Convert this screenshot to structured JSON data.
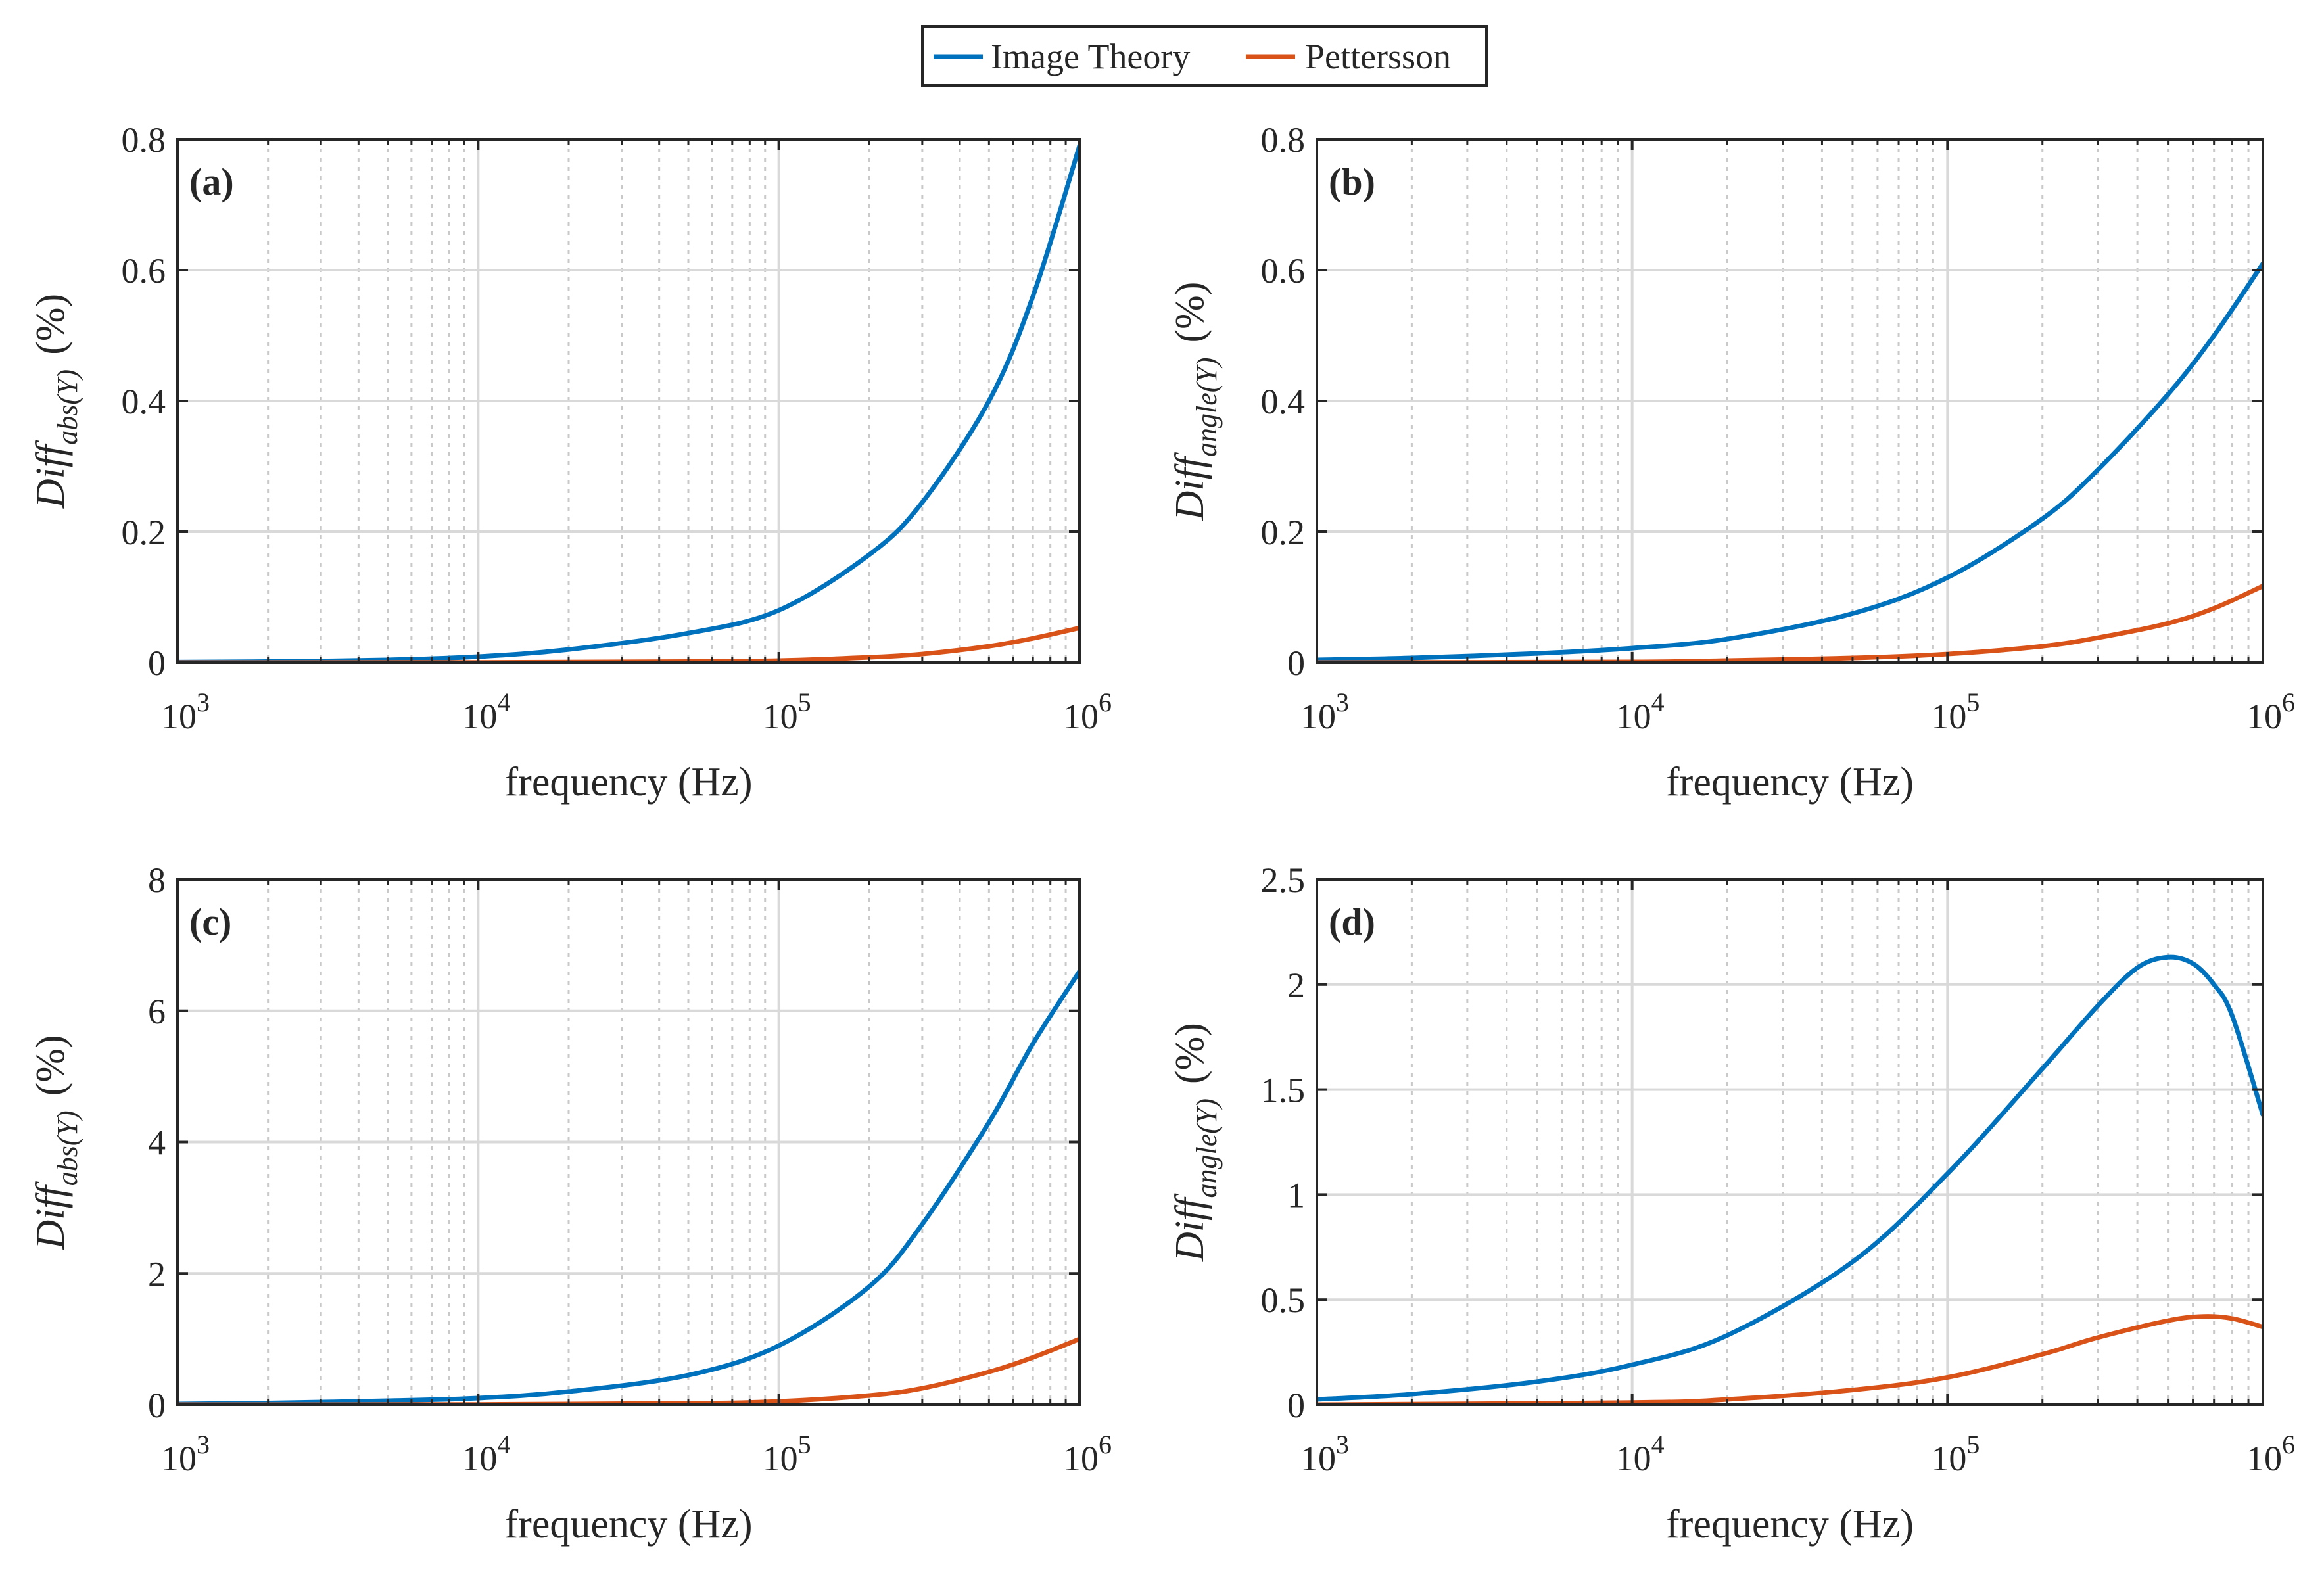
{
  "legend": {
    "items": [
      {
        "label": "Image Theory",
        "color": "#0072BD"
      },
      {
        "label": "Pettersson",
        "color": "#D95319"
      }
    ]
  },
  "chart_data": [
    {
      "type": "line",
      "panel": "(a)",
      "xlabel": "frequency (Hz)",
      "ylabel": {
        "main": "Diff",
        "sub": "abs(Y)",
        "unit": "(%)"
      },
      "xscale": "log",
      "xlim": [
        1000,
        1000000
      ],
      "xticks": [
        {
          "base": "10",
          "exp": "3"
        },
        {
          "base": "10",
          "exp": "4"
        },
        {
          "base": "10",
          "exp": "5"
        },
        {
          "base": "10",
          "exp": "6"
        }
      ],
      "ylim": [
        0,
        0.8
      ],
      "yticks": [
        "0",
        "0.2",
        "0.4",
        "0.6",
        "0.8"
      ],
      "grid": true,
      "series": [
        {
          "name": "Image Theory",
          "color": "#0072BD",
          "x": [
            1000,
            2000,
            5000,
            10000,
            20000,
            50000,
            100000,
            200000,
            300000,
            500000,
            700000,
            1000000
          ],
          "y": [
            0.0006,
            0.0015,
            0.004,
            0.009,
            0.02,
            0.045,
            0.08,
            0.165,
            0.245,
            0.4,
            0.56,
            0.79
          ]
        },
        {
          "name": "Pettersson",
          "color": "#D95319",
          "x": [
            1000,
            10000,
            50000,
            100000,
            200000,
            300000,
            500000,
            700000,
            1000000
          ],
          "y": [
            0,
            0.0003,
            0.0015,
            0.003,
            0.008,
            0.013,
            0.025,
            0.037,
            0.053
          ]
        }
      ]
    },
    {
      "type": "line",
      "panel": "(b)",
      "xlabel": "frequency (Hz)",
      "ylabel": {
        "main": "Diff",
        "sub": "angle(Y)",
        "unit": "(%)"
      },
      "xscale": "log",
      "xlim": [
        1000,
        1000000
      ],
      "xticks": [
        {
          "base": "10",
          "exp": "3"
        },
        {
          "base": "10",
          "exp": "4"
        },
        {
          "base": "10",
          "exp": "5"
        },
        {
          "base": "10",
          "exp": "6"
        }
      ],
      "ylim": [
        0,
        0.8
      ],
      "yticks": [
        "0",
        "0.2",
        "0.4",
        "0.6",
        "0.8"
      ],
      "grid": true,
      "series": [
        {
          "name": "Image Theory",
          "color": "#0072BD",
          "x": [
            1000,
            2000,
            5000,
            10000,
            20000,
            50000,
            100000,
            200000,
            300000,
            500000,
            700000,
            1000000
          ],
          "y": [
            0.004,
            0.007,
            0.014,
            0.022,
            0.036,
            0.075,
            0.13,
            0.22,
            0.295,
            0.41,
            0.5,
            0.61
          ]
        },
        {
          "name": "Pettersson",
          "color": "#D95319",
          "x": [
            1000,
            10000,
            20000,
            50000,
            100000,
            200000,
            300000,
            500000,
            700000,
            1000000
          ],
          "y": [
            0,
            0.001,
            0.003,
            0.007,
            0.013,
            0.025,
            0.038,
            0.06,
            0.083,
            0.117
          ]
        }
      ]
    },
    {
      "type": "line",
      "panel": "(c)",
      "xlabel": "frequency (Hz)",
      "ylabel": {
        "main": "Diff",
        "sub": "abs(Y)",
        "unit": "(%)"
      },
      "xscale": "log",
      "xlim": [
        1000,
        1000000
      ],
      "xticks": [
        {
          "base": "10",
          "exp": "3"
        },
        {
          "base": "10",
          "exp": "4"
        },
        {
          "base": "10",
          "exp": "5"
        },
        {
          "base": "10",
          "exp": "6"
        }
      ],
      "ylim": [
        0,
        8
      ],
      "yticks": [
        "0",
        "2",
        "4",
        "6",
        "8"
      ],
      "grid": true,
      "series": [
        {
          "name": "Image Theory",
          "color": "#0072BD",
          "x": [
            1000,
            2000,
            5000,
            10000,
            20000,
            50000,
            100000,
            200000,
            300000,
            500000,
            700000,
            1000000
          ],
          "y": [
            0.01,
            0.025,
            0.06,
            0.1,
            0.2,
            0.45,
            0.9,
            1.8,
            2.75,
            4.3,
            5.5,
            6.6
          ]
        },
        {
          "name": "Pettersson",
          "color": "#D95319",
          "x": [
            1000,
            10000,
            50000,
            100000,
            200000,
            300000,
            500000,
            700000,
            1000000
          ],
          "y": [
            0,
            0.003,
            0.02,
            0.05,
            0.14,
            0.25,
            0.5,
            0.72,
            1.0
          ]
        }
      ]
    },
    {
      "type": "line",
      "panel": "(d)",
      "xlabel": "frequency (Hz)",
      "ylabel": {
        "main": "Diff",
        "sub": "angle(Y)",
        "unit": "(%)"
      },
      "xscale": "log",
      "xlim": [
        1000,
        1000000
      ],
      "xticks": [
        {
          "base": "10",
          "exp": "3"
        },
        {
          "base": "10",
          "exp": "4"
        },
        {
          "base": "10",
          "exp": "5"
        },
        {
          "base": "10",
          "exp": "6"
        }
      ],
      "ylim": [
        0,
        2.5
      ],
      "yticks": [
        "0",
        "0.5",
        "1",
        "1.5",
        "2",
        "2.5"
      ],
      "grid": true,
      "series": [
        {
          "name": "Image Theory",
          "color": "#0072BD",
          "x": [
            1000,
            2000,
            5000,
            10000,
            20000,
            50000,
            100000,
            200000,
            300000,
            400000,
            500000,
            600000,
            700000,
            800000,
            1000000
          ],
          "y": [
            0.025,
            0.05,
            0.11,
            0.19,
            0.33,
            0.68,
            1.1,
            1.6,
            1.9,
            2.08,
            2.13,
            2.1,
            2.0,
            1.85,
            1.38
          ]
        },
        {
          "name": "Pettersson",
          "color": "#D95319",
          "x": [
            1000,
            10000,
            20000,
            50000,
            100000,
            200000,
            300000,
            500000,
            650000,
            800000,
            1000000
          ],
          "y": [
            0,
            0.01,
            0.025,
            0.07,
            0.13,
            0.24,
            0.32,
            0.4,
            0.42,
            0.41,
            0.37
          ]
        }
      ]
    }
  ]
}
